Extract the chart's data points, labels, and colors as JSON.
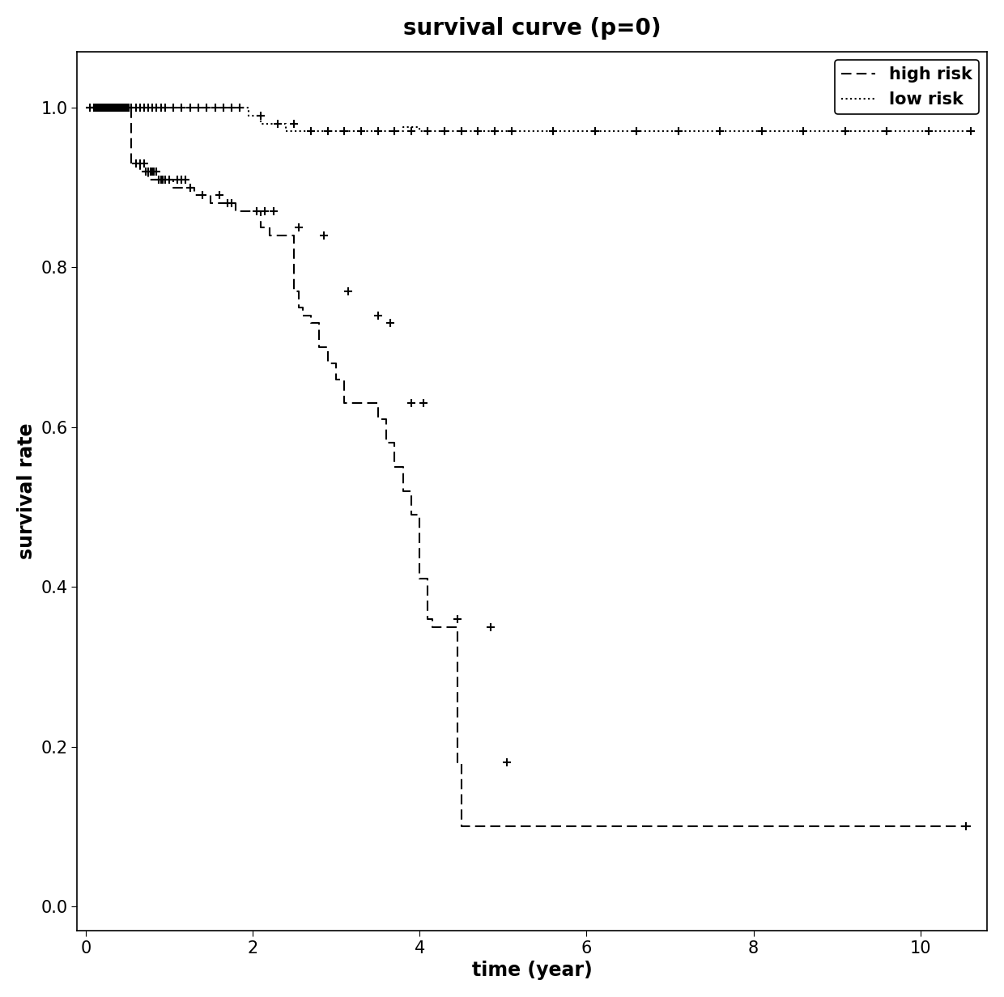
{
  "title": "survival curve (p=0)",
  "xlabel": "time (year)",
  "ylabel": "survival rate",
  "xlim": [
    -0.1,
    10.8
  ],
  "ylim": [
    -0.03,
    1.07
  ],
  "yticks": [
    0.0,
    0.2,
    0.4,
    0.6,
    0.8,
    1.0
  ],
  "xticks": [
    0,
    2,
    4,
    6,
    8,
    10
  ],
  "title_fontsize": 20,
  "label_fontsize": 17,
  "tick_fontsize": 15,
  "legend_fontsize": 15,
  "high_risk_steps": [
    [
      0.0,
      1.0
    ],
    [
      0.55,
      1.0
    ],
    [
      0.55,
      0.93
    ],
    [
      0.65,
      0.93
    ],
    [
      0.65,
      0.92
    ],
    [
      0.75,
      0.92
    ],
    [
      0.75,
      0.91
    ],
    [
      1.05,
      0.91
    ],
    [
      1.05,
      0.9
    ],
    [
      1.3,
      0.9
    ],
    [
      1.3,
      0.89
    ],
    [
      1.5,
      0.89
    ],
    [
      1.5,
      0.88
    ],
    [
      1.8,
      0.88
    ],
    [
      1.8,
      0.87
    ],
    [
      2.1,
      0.87
    ],
    [
      2.1,
      0.85
    ],
    [
      2.2,
      0.85
    ],
    [
      2.2,
      0.84
    ],
    [
      2.5,
      0.84
    ],
    [
      2.5,
      0.77
    ],
    [
      2.55,
      0.77
    ],
    [
      2.55,
      0.75
    ],
    [
      2.6,
      0.75
    ],
    [
      2.6,
      0.74
    ],
    [
      2.7,
      0.74
    ],
    [
      2.7,
      0.73
    ],
    [
      2.8,
      0.73
    ],
    [
      2.8,
      0.7
    ],
    [
      2.9,
      0.7
    ],
    [
      2.9,
      0.68
    ],
    [
      3.0,
      0.68
    ],
    [
      3.0,
      0.66
    ],
    [
      3.1,
      0.66
    ],
    [
      3.1,
      0.63
    ],
    [
      3.5,
      0.63
    ],
    [
      3.5,
      0.61
    ],
    [
      3.6,
      0.61
    ],
    [
      3.6,
      0.58
    ],
    [
      3.7,
      0.58
    ],
    [
      3.7,
      0.55
    ],
    [
      3.8,
      0.55
    ],
    [
      3.8,
      0.52
    ],
    [
      3.9,
      0.52
    ],
    [
      3.9,
      0.49
    ],
    [
      4.0,
      0.49
    ],
    [
      4.0,
      0.41
    ],
    [
      4.1,
      0.41
    ],
    [
      4.1,
      0.36
    ],
    [
      4.15,
      0.36
    ],
    [
      4.15,
      0.35
    ],
    [
      4.45,
      0.35
    ],
    [
      4.45,
      0.18
    ],
    [
      4.5,
      0.18
    ],
    [
      4.5,
      0.1
    ],
    [
      10.6,
      0.1
    ]
  ],
  "low_risk_steps": [
    [
      0.0,
      1.0
    ],
    [
      1.95,
      1.0
    ],
    [
      1.95,
      0.99
    ],
    [
      2.1,
      0.99
    ],
    [
      2.1,
      0.98
    ],
    [
      2.4,
      0.98
    ],
    [
      2.4,
      0.97
    ],
    [
      3.8,
      0.97
    ],
    [
      3.8,
      0.975
    ],
    [
      4.0,
      0.975
    ],
    [
      4.0,
      0.97
    ],
    [
      10.6,
      0.97
    ]
  ],
  "high_risk_censored": [
    [
      0.1,
      1.0
    ],
    [
      0.12,
      1.0
    ],
    [
      0.14,
      1.0
    ],
    [
      0.16,
      1.0
    ],
    [
      0.18,
      1.0
    ],
    [
      0.2,
      1.0
    ],
    [
      0.22,
      1.0
    ],
    [
      0.24,
      1.0
    ],
    [
      0.26,
      1.0
    ],
    [
      0.28,
      1.0
    ],
    [
      0.3,
      1.0
    ],
    [
      0.32,
      1.0
    ],
    [
      0.34,
      1.0
    ],
    [
      0.36,
      1.0
    ],
    [
      0.38,
      1.0
    ],
    [
      0.4,
      1.0
    ],
    [
      0.42,
      1.0
    ],
    [
      0.44,
      1.0
    ],
    [
      0.46,
      1.0
    ],
    [
      0.48,
      1.0
    ],
    [
      0.5,
      1.0
    ],
    [
      0.52,
      1.0
    ],
    [
      0.6,
      0.93
    ],
    [
      0.65,
      0.93
    ],
    [
      0.7,
      0.93
    ],
    [
      0.72,
      0.92
    ],
    [
      0.75,
      0.92
    ],
    [
      0.78,
      0.92
    ],
    [
      0.8,
      0.92
    ],
    [
      0.82,
      0.92
    ],
    [
      0.85,
      0.92
    ],
    [
      0.88,
      0.91
    ],
    [
      0.9,
      0.91
    ],
    [
      0.92,
      0.91
    ],
    [
      0.95,
      0.91
    ],
    [
      1.0,
      0.91
    ],
    [
      1.1,
      0.91
    ],
    [
      1.15,
      0.91
    ],
    [
      1.2,
      0.91
    ],
    [
      1.25,
      0.9
    ],
    [
      1.4,
      0.89
    ],
    [
      1.6,
      0.89
    ],
    [
      1.7,
      0.88
    ],
    [
      1.75,
      0.88
    ],
    [
      2.05,
      0.87
    ],
    [
      2.15,
      0.87
    ],
    [
      2.25,
      0.87
    ],
    [
      2.55,
      0.85
    ],
    [
      2.85,
      0.84
    ],
    [
      3.15,
      0.77
    ],
    [
      3.5,
      0.74
    ],
    [
      3.65,
      0.73
    ],
    [
      3.9,
      0.63
    ],
    [
      4.05,
      0.63
    ],
    [
      4.45,
      0.36
    ],
    [
      4.85,
      0.35
    ],
    [
      5.05,
      0.18
    ],
    [
      10.55,
      0.1
    ]
  ],
  "low_risk_censored": [
    [
      0.05,
      1.0
    ],
    [
      0.1,
      1.0
    ],
    [
      0.15,
      1.0
    ],
    [
      0.2,
      1.0
    ],
    [
      0.25,
      1.0
    ],
    [
      0.3,
      1.0
    ],
    [
      0.35,
      1.0
    ],
    [
      0.4,
      1.0
    ],
    [
      0.45,
      1.0
    ],
    [
      0.5,
      1.0
    ],
    [
      0.55,
      1.0
    ],
    [
      0.6,
      1.0
    ],
    [
      0.65,
      1.0
    ],
    [
      0.7,
      1.0
    ],
    [
      0.75,
      1.0
    ],
    [
      0.8,
      1.0
    ],
    [
      0.85,
      1.0
    ],
    [
      0.9,
      1.0
    ],
    [
      0.95,
      1.0
    ],
    [
      1.05,
      1.0
    ],
    [
      1.15,
      1.0
    ],
    [
      1.25,
      1.0
    ],
    [
      1.35,
      1.0
    ],
    [
      1.45,
      1.0
    ],
    [
      1.55,
      1.0
    ],
    [
      1.65,
      1.0
    ],
    [
      1.75,
      1.0
    ],
    [
      1.85,
      1.0
    ],
    [
      2.1,
      0.99
    ],
    [
      2.3,
      0.98
    ],
    [
      2.5,
      0.98
    ],
    [
      2.7,
      0.97
    ],
    [
      2.9,
      0.97
    ],
    [
      3.1,
      0.97
    ],
    [
      3.3,
      0.97
    ],
    [
      3.5,
      0.97
    ],
    [
      3.7,
      0.97
    ],
    [
      3.9,
      0.97
    ],
    [
      4.1,
      0.97
    ],
    [
      4.3,
      0.97
    ],
    [
      4.5,
      0.97
    ],
    [
      4.7,
      0.97
    ],
    [
      4.9,
      0.97
    ],
    [
      5.1,
      0.97
    ],
    [
      5.6,
      0.97
    ],
    [
      6.1,
      0.97
    ],
    [
      6.6,
      0.97
    ],
    [
      7.1,
      0.97
    ],
    [
      7.6,
      0.97
    ],
    [
      8.1,
      0.97
    ],
    [
      8.6,
      0.97
    ],
    [
      9.1,
      0.97
    ],
    [
      9.6,
      0.97
    ],
    [
      10.1,
      0.97
    ],
    [
      10.6,
      0.97
    ]
  ]
}
